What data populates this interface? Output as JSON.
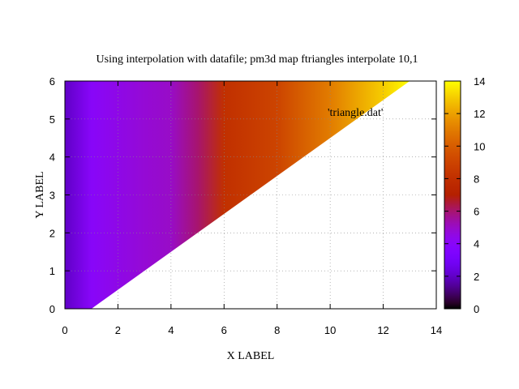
{
  "chart_data": {
    "type": "heatmap",
    "title": "Using interpolation with datafile; pm3d map ftriangles interpolate 10,1",
    "xlabel": "X LABEL",
    "ylabel": "Y LABEL",
    "xlim": [
      0,
      14
    ],
    "ylim": [
      0,
      6
    ],
    "xticks": [
      "0",
      "2",
      "4",
      "6",
      "8",
      "10",
      "12",
      "14"
    ],
    "yticks": [
      "0",
      "1",
      "2",
      "3",
      "4",
      "5",
      "6"
    ],
    "cblim": [
      0,
      14
    ],
    "cbticks": [
      "0",
      "2",
      "4",
      "6",
      "8",
      "10",
      "12",
      "14"
    ],
    "grid": true,
    "legend_position": "top-right",
    "series": [
      {
        "name": "'triangle.dat'",
        "shape": "triangle",
        "vertices": [
          [
            0,
            0
          ],
          [
            1,
            0
          ],
          [
            13,
            6
          ],
          [
            0,
            6
          ]
        ],
        "color_by": "x",
        "color_profile": [
          [
            0,
            2
          ],
          [
            1,
            4
          ],
          [
            3,
            4.8
          ],
          [
            4,
            5
          ],
          [
            5,
            6
          ],
          [
            6,
            8
          ],
          [
            8,
            9
          ],
          [
            10,
            11
          ],
          [
            12,
            13
          ],
          [
            13,
            14
          ]
        ]
      }
    ],
    "palette": "gnuplot (black-purple-blue-red-orange-yellow)"
  }
}
